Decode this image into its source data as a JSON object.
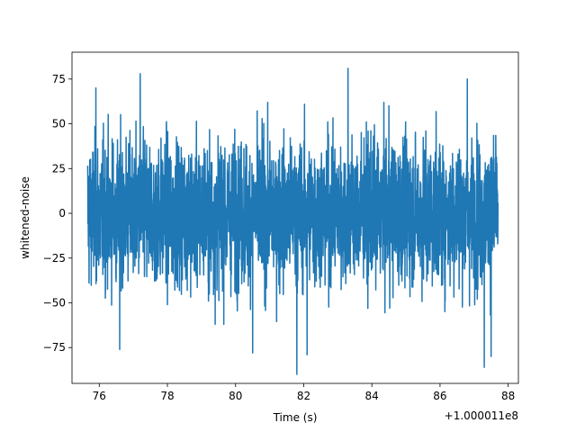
{
  "chart_data": {
    "type": "line",
    "title": "",
    "xlabel": "Time (s)",
    "ylabel": "whitened-noise",
    "x_offset_label": "+1.000011e8",
    "xlim": [
      75.2,
      88.3
    ],
    "ylim": [
      -95,
      90
    ],
    "grid": false,
    "legend": "none",
    "x_ticks": [
      76,
      78,
      80,
      82,
      84,
      86,
      88
    ],
    "x_tick_labels": [
      "76",
      "78",
      "80",
      "82",
      "84",
      "86",
      "88"
    ],
    "y_ticks": [
      -75,
      -50,
      -25,
      0,
      25,
      50,
      75
    ],
    "y_tick_labels": [
      "−75",
      "−50",
      "−25",
      "0",
      "25",
      "50",
      "75"
    ],
    "series": [
      {
        "color": "#1f77b4",
        "x_range": [
          75.66,
          87.7
        ],
        "typical_envelope": [
          -45,
          45
        ],
        "extremes": [
          {
            "x": 75.9,
            "y": 70
          },
          {
            "x": 77.2,
            "y": 78
          },
          {
            "x": 76.6,
            "y": -76
          },
          {
            "x": 79.4,
            "y": -62
          },
          {
            "x": 80.5,
            "y": -78
          },
          {
            "x": 81.8,
            "y": -90
          },
          {
            "x": 82.1,
            "y": -79
          },
          {
            "x": 83.3,
            "y": 81
          },
          {
            "x": 84.5,
            "y": 60
          },
          {
            "x": 86.8,
            "y": 75
          },
          {
            "x": 87.3,
            "y": -86
          },
          {
            "x": 87.5,
            "y": -80
          }
        ]
      }
    ]
  }
}
